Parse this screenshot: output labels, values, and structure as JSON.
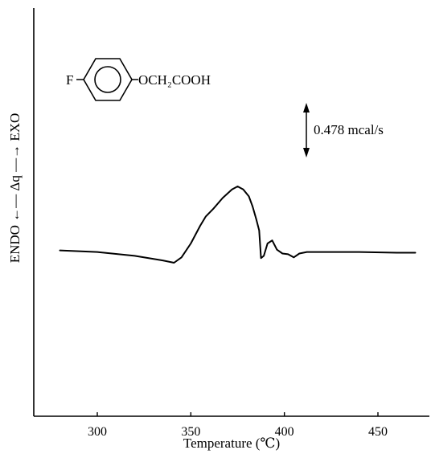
{
  "chart_data": {
    "type": "line",
    "xlabel": "Temperature (℃)",
    "ylabel": "ENDO ←— Δq —→ EXO",
    "xlim": [
      273,
      475
    ],
    "x_ticks": [
      300,
      350,
      400,
      450
    ],
    "x_tick_labels": [
      "300",
      "350",
      "400",
      "450"
    ],
    "grid": false,
    "legend": "none",
    "scale_bar": {
      "label": "0.478 mcal/s"
    },
    "compound_label": {
      "substituent_left": "F",
      "substituent_right": "OCH₂COOH"
    },
    "series": [
      {
        "x": [
          280,
          300,
          320,
          335,
          341,
          345,
          350,
          355,
          358,
          362,
          367,
          372,
          375,
          378,
          381,
          383,
          385,
          386.5,
          387.5,
          389,
          391,
          393.5,
          396,
          399,
          402,
          405,
          408,
          412,
          420,
          440,
          460,
          470
        ],
        "y": [
          0.16,
          0.14,
          0.09,
          0.03,
          0.0,
          0.07,
          0.25,
          0.48,
          0.6,
          0.7,
          0.84,
          0.95,
          0.99,
          0.95,
          0.86,
          0.73,
          0.56,
          0.42,
          0.06,
          0.09,
          0.25,
          0.29,
          0.17,
          0.12,
          0.11,
          0.07,
          0.12,
          0.14,
          0.14,
          0.14,
          0.13,
          0.13
        ]
      }
    ]
  }
}
